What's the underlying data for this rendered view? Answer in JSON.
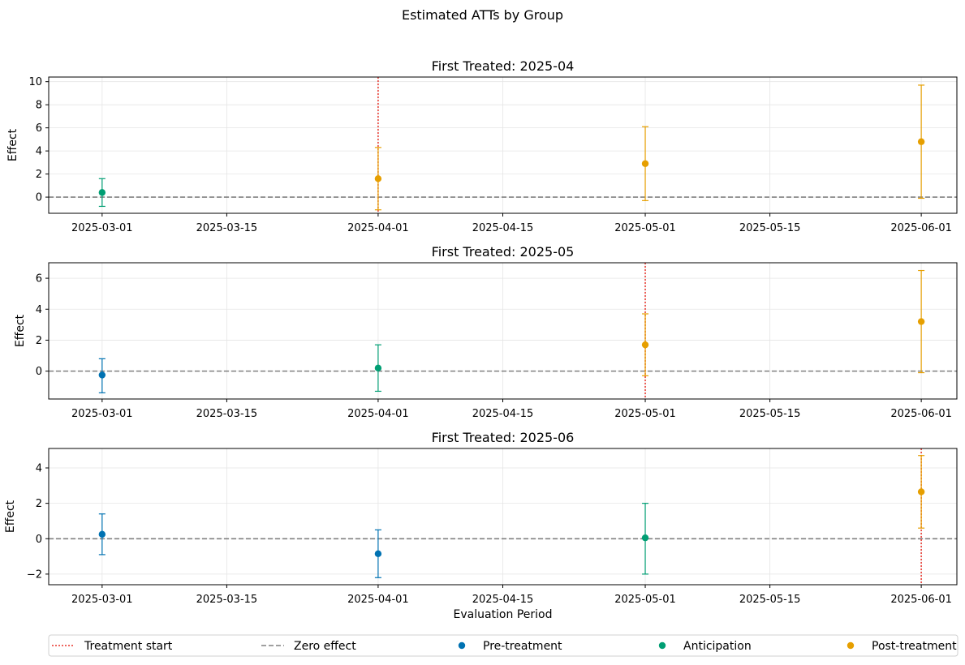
{
  "chart_data": {
    "type": "scatter",
    "title": "Estimated ATTs by Group",
    "xlabel": "Evaluation Period",
    "ylabel": "Effect",
    "x_ticks": [
      "2025-03-01",
      "2025-03-15",
      "2025-04-01",
      "2025-04-15",
      "2025-05-01",
      "2025-05-15",
      "2025-06-01"
    ],
    "grid": true,
    "legend_position": "bottom",
    "legend": [
      {
        "key": "treatment",
        "label": "Treatment start",
        "style": "dotted-line",
        "color": "#e8332a"
      },
      {
        "key": "zero",
        "label": "Zero effect",
        "style": "dashed-line",
        "color": "#808080"
      },
      {
        "key": "pre",
        "label": "Pre-treatment",
        "style": "marker",
        "color": "#0072b2"
      },
      {
        "key": "anticipation",
        "label": "Anticipation",
        "style": "marker",
        "color": "#009e73"
      },
      {
        "key": "post",
        "label": "Post-treatment",
        "style": "marker",
        "color": "#e69f00"
      }
    ],
    "colors": {
      "pre": "#0072b2",
      "anticipation": "#009e73",
      "post": "#e69f00",
      "treatment": "#e8332a",
      "zero": "#808080"
    },
    "panels": [
      {
        "title": "First Treated: 2025-04",
        "treatment_date": "2025-04-01",
        "ylim": [
          -1.4,
          10.4
        ],
        "yticks": [
          0,
          2,
          4,
          6,
          8,
          10
        ],
        "points": [
          {
            "x": "2025-03-01",
            "y": 0.4,
            "lo": -0.8,
            "hi": 1.6,
            "type": "anticipation"
          },
          {
            "x": "2025-04-01",
            "y": 1.6,
            "lo": -1.1,
            "hi": 4.3,
            "type": "post"
          },
          {
            "x": "2025-05-01",
            "y": 2.9,
            "lo": -0.3,
            "hi": 6.1,
            "type": "post"
          },
          {
            "x": "2025-06-01",
            "y": 4.8,
            "lo": -0.1,
            "hi": 9.7,
            "type": "post"
          }
        ]
      },
      {
        "title": "First Treated: 2025-05",
        "treatment_date": "2025-05-01",
        "ylim": [
          -1.8,
          7.0
        ],
        "yticks": [
          0,
          2,
          4,
          6
        ],
        "points": [
          {
            "x": "2025-03-01",
            "y": -0.25,
            "lo": -1.4,
            "hi": 0.8,
            "type": "pre"
          },
          {
            "x": "2025-04-01",
            "y": 0.2,
            "lo": -1.3,
            "hi": 1.7,
            "type": "anticipation"
          },
          {
            "x": "2025-05-01",
            "y": 1.7,
            "lo": -0.3,
            "hi": 3.7,
            "type": "post"
          },
          {
            "x": "2025-06-01",
            "y": 3.2,
            "lo": -0.1,
            "hi": 6.5,
            "type": "post"
          }
        ]
      },
      {
        "title": "First Treated: 2025-06",
        "treatment_date": "2025-06-01",
        "ylim": [
          -2.6,
          5.1
        ],
        "yticks": [
          -2,
          0,
          2,
          4
        ],
        "points": [
          {
            "x": "2025-03-01",
            "y": 0.25,
            "lo": -0.9,
            "hi": 1.4,
            "type": "pre"
          },
          {
            "x": "2025-04-01",
            "y": -0.85,
            "lo": -2.2,
            "hi": 0.5,
            "type": "pre"
          },
          {
            "x": "2025-05-01",
            "y": 0.05,
            "lo": -2.0,
            "hi": 2.0,
            "type": "anticipation"
          },
          {
            "x": "2025-06-01",
            "y": 2.65,
            "lo": 0.6,
            "hi": 4.7,
            "type": "post"
          }
        ]
      }
    ]
  }
}
